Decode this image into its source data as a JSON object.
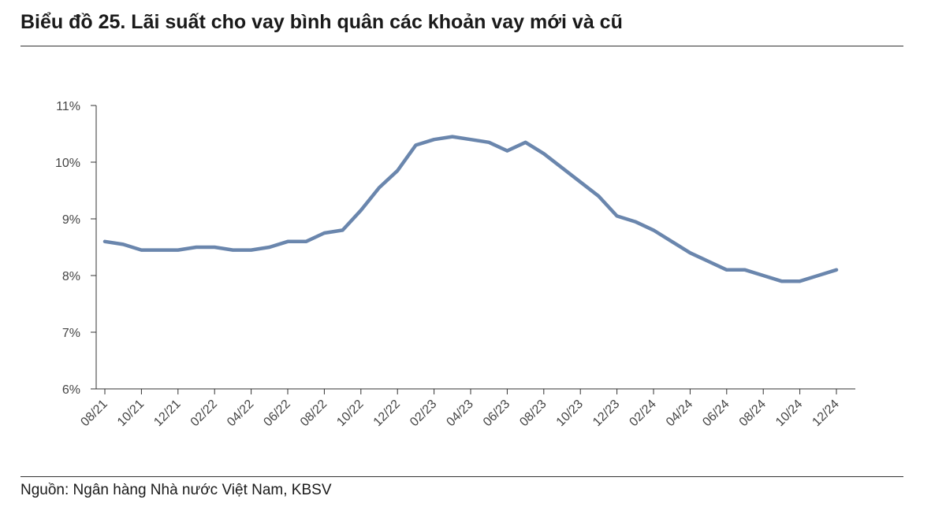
{
  "title": "Biểu đồ 25. Lãi suất cho vay bình quân các khoản vay mới và cũ",
  "source": "Nguồn: Ngân hàng Nhà nước Việt Nam, KBSV",
  "colors": {
    "line": "#6A86AD",
    "axis": "#333333"
  },
  "chart_data": {
    "type": "line",
    "title": "Biểu đồ 25. Lãi suất cho vay bình quân các khoản vay mới và cũ",
    "xlabel": "",
    "ylabel": "",
    "ylim": [
      6,
      11
    ],
    "y_ticks": [
      "6%",
      "7%",
      "8%",
      "9%",
      "10%",
      "11%"
    ],
    "x_ticks": [
      "08/21",
      "10/21",
      "12/21",
      "02/22",
      "04/22",
      "06/22",
      "08/22",
      "10/22",
      "12/22",
      "02/23",
      "04/23",
      "06/23",
      "08/23",
      "10/23",
      "12/23",
      "02/24",
      "04/24",
      "06/24",
      "08/24",
      "10/24",
      "12/24"
    ],
    "grid": false,
    "legend": "none",
    "series": [
      {
        "x": [
          "08/21",
          "09/21",
          "10/21",
          "11/21",
          "12/21",
          "01/22",
          "02/22",
          "03/22",
          "04/22",
          "05/22",
          "06/22",
          "07/22",
          "08/22",
          "09/22",
          "10/22",
          "11/22",
          "12/22",
          "01/23",
          "02/23",
          "03/23",
          "04/23",
          "05/23",
          "06/23",
          "07/23",
          "08/23",
          "09/23",
          "10/23",
          "11/23",
          "12/23",
          "01/24",
          "02/24",
          "03/24",
          "04/24",
          "05/24",
          "06/24",
          "07/24",
          "08/24",
          "09/24",
          "10/24",
          "11/24",
          "12/24"
        ],
        "values": [
          8.6,
          8.55,
          8.45,
          8.45,
          8.45,
          8.5,
          8.5,
          8.45,
          8.45,
          8.5,
          8.6,
          8.6,
          8.75,
          8.8,
          9.15,
          9.55,
          9.85,
          10.3,
          10.4,
          10.45,
          10.4,
          10.35,
          10.2,
          10.35,
          10.15,
          9.9,
          9.65,
          9.4,
          9.05,
          8.95,
          8.8,
          8.6,
          8.4,
          8.25,
          8.1,
          8.1,
          8.0,
          7.9,
          7.9,
          8.0,
          8.1
        ]
      }
    ]
  }
}
